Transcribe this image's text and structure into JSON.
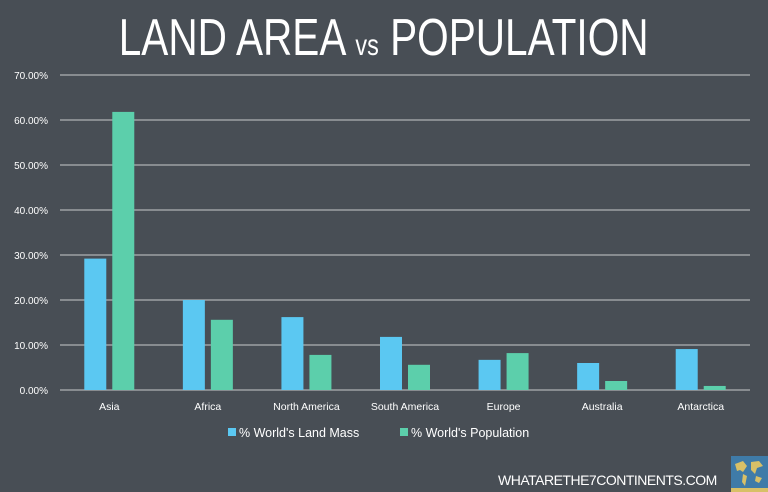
{
  "chart_data": {
    "type": "bar",
    "title_main": "LAND AREA",
    "title_vs": "vs",
    "title_end": "POPULATION",
    "categories": [
      "Asia",
      "Africa",
      "North America",
      "South America",
      "Europe",
      "Australia",
      "Antarctica"
    ],
    "series": [
      {
        "name": "% World's Land Mass",
        "color": "#5bc8f2",
        "values": [
          29.2,
          20.0,
          16.2,
          11.8,
          6.7,
          6.0,
          9.1
        ]
      },
      {
        "name": "% World's Population",
        "color": "#5ccfab",
        "values": [
          61.8,
          15.6,
          7.8,
          5.6,
          8.2,
          2.0,
          0.9
        ]
      }
    ],
    "yticks": [
      "0.00%",
      "10.00%",
      "20.00%",
      "30.00%",
      "40.00%",
      "50.00%",
      "60.00%",
      "70.00%"
    ],
    "ylim": [
      0,
      70
    ],
    "grid": true,
    "legend": "bottom"
  },
  "footer": "WHATARETHE7CONTINENTS.COM",
  "colors": {
    "background": "#484e55",
    "grid": "#c8cacc"
  }
}
